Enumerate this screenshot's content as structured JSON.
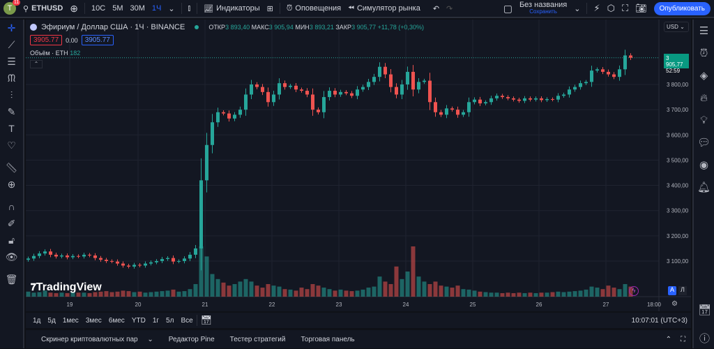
{
  "header": {
    "avatar_letter": "T",
    "notifications": "11",
    "symbol": "ETHUSD",
    "intervals": [
      "10С",
      "5М",
      "30М",
      "1Ч"
    ],
    "active_interval": "1Ч",
    "indicators": "Индикаторы",
    "alerts": "Оповещения",
    "replay": "Симулятор рынка",
    "layout_name": "Без названия",
    "save": "Сохранить",
    "publish": "Опубликовать"
  },
  "legend": {
    "title": "Эфириум / Доллар США · 1Ч · BINANCE",
    "open_label": "ОТКР",
    "open": "3 893,40",
    "high_label": "МАКС",
    "high": "3 905,94",
    "low_label": "МИН",
    "low": "3 893,21",
    "close_label": "ЗАКР",
    "close": "3 905,77",
    "change": "+11,78 (+0,30%)",
    "sell": "3905.77",
    "spread": "0.00",
    "buy": "3905.77",
    "volume_label": "Объём · ETH",
    "volume_value": "182"
  },
  "price_axis": {
    "currency": "USD",
    "last_price": "3 905,77",
    "countdown": "52:59",
    "ticks": [
      "3 800,00",
      "3 700,00",
      "3 600,00",
      "3 500,00",
      "3 400,00",
      "3 300,00",
      "3 200,00",
      "3 100,00"
    ],
    "auto": "A",
    "log": "Л"
  },
  "time_axis": {
    "ticks": [
      "19",
      "20",
      "21",
      "22",
      "23",
      "24",
      "25",
      "26",
      "27",
      "18:00"
    ]
  },
  "watermark": "TradingView",
  "range_bar": {
    "ranges": [
      "1д",
      "5д",
      "1мес",
      "3мес",
      "6мес",
      "YTD",
      "1г",
      "5л",
      "Все"
    ],
    "clock": "10:07:01 (UTC+3)"
  },
  "bottom_panel": {
    "tabs": [
      "Скринер криптовалютных пар",
      "Редактор Pine",
      "Тестер стратегий",
      "Торговая панель"
    ]
  },
  "colors": {
    "up": "#26a69a",
    "down": "#ef5350",
    "accent": "#2962ff",
    "background": "#131722"
  },
  "chart_data": {
    "type": "candlestick",
    "interval": "2h (approximated from 1h chart)",
    "start": "18 08:00",
    "x_ticks": [
      "19",
      "20",
      "21",
      "22",
      "23",
      "24",
      "25",
      "26",
      "27",
      "18:00"
    ],
    "ylim": [
      3000,
      3950
    ],
    "closes": [
      3110,
      3120,
      3130,
      3138,
      3125,
      3118,
      3122,
      3115,
      3120,
      3118,
      3125,
      3122,
      3112,
      3105,
      3100,
      3098,
      3090,
      3082,
      3078,
      3085,
      3082,
      3090,
      3095,
      3100,
      3108,
      3112,
      3098,
      3100,
      3110,
      3125,
      3150,
      3420,
      3560,
      3650,
      3690,
      3685,
      3665,
      3680,
      3700,
      3760,
      3800,
      3790,
      3770,
      3730,
      3760,
      3805,
      3790,
      3795,
      3780,
      3775,
      3760,
      3700,
      3690,
      3750,
      3775,
      3760,
      3770,
      3765,
      3755,
      3780,
      3790,
      3810,
      3830,
      3870,
      3840,
      3790,
      3760,
      3800,
      3850,
      3780,
      3810,
      3815,
      3730,
      3690,
      3680,
      3705,
      3700,
      3680,
      3690,
      3730,
      3740,
      3725,
      3730,
      3745,
      3755,
      3750,
      3745,
      3740,
      3735,
      3745,
      3740,
      3745,
      3738,
      3742,
      3740,
      3755,
      3760,
      3780,
      3790,
      3805,
      3810,
      3855,
      3860,
      3850,
      3840,
      3830,
      3860,
      3915,
      3905.77
    ],
    "volume_relative": [
      10,
      8,
      9,
      12,
      8,
      7,
      8,
      7,
      9,
      8,
      8,
      7,
      9,
      10,
      11,
      9,
      10,
      12,
      11,
      9,
      10,
      8,
      9,
      10,
      11,
      12,
      14,
      10,
      11,
      15,
      25,
      100,
      80,
      45,
      35,
      28,
      22,
      25,
      30,
      35,
      30,
      22,
      18,
      25,
      22,
      20,
      15,
      14,
      12,
      18,
      15,
      25,
      22,
      18,
      15,
      12,
      14,
      12,
      11,
      12,
      14,
      18,
      20,
      40,
      30,
      25,
      60,
      35,
      50,
      100,
      40,
      30,
      25,
      30,
      22,
      20,
      18,
      22,
      15,
      14,
      12,
      10,
      9,
      8,
      8,
      7,
      8,
      7,
      8,
      7,
      8,
      7,
      8,
      8,
      9,
      10,
      9,
      10,
      11,
      12,
      14,
      20,
      18,
      15,
      22,
      18,
      15,
      25,
      20
    ]
  }
}
